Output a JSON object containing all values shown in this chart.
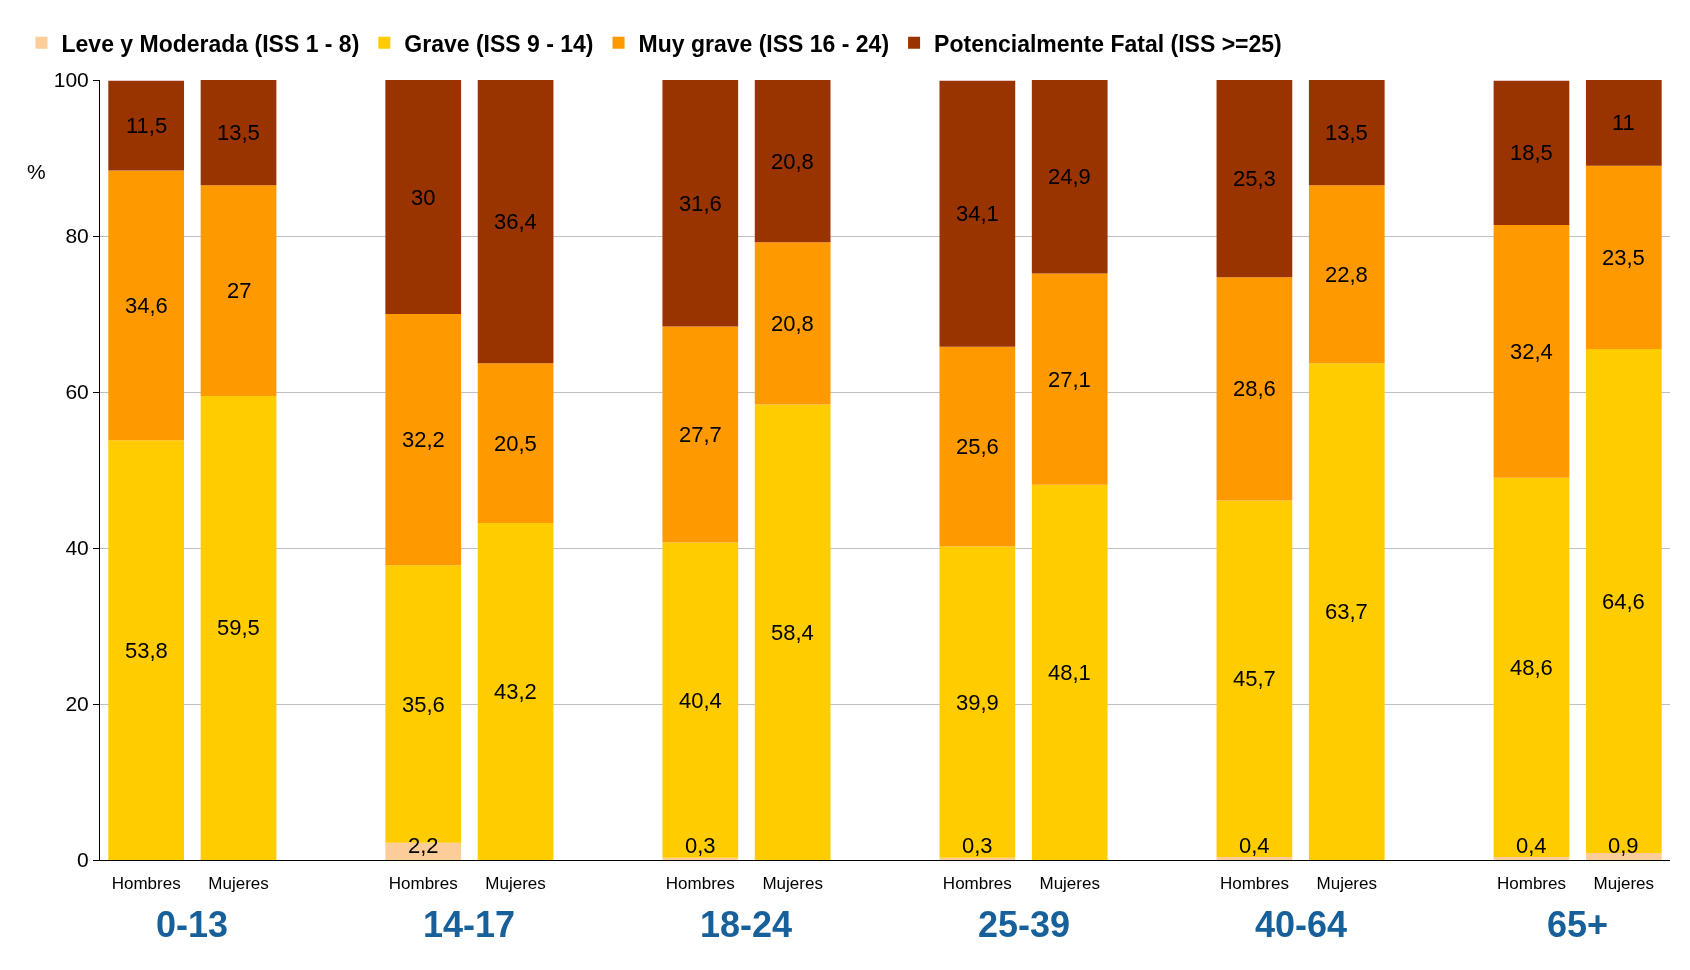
{
  "chart_data": {
    "type": "bar",
    "stacked": true,
    "ylabel": "%",
    "ylim": [
      0,
      100
    ],
    "yticks": [
      0,
      20,
      40,
      60,
      80,
      100
    ],
    "grid": "y",
    "legend": "top",
    "data_labels": true,
    "categories": [
      "Hombres",
      "Mujeres",
      null,
      "Hombres",
      "Mujeres",
      null,
      "Hombres",
      "Mujeres",
      null,
      "Hombres",
      "Mujeres",
      null,
      "Hombres",
      "Mujeres",
      null,
      "Hombres",
      "Mujeres"
    ],
    "annotations": [
      "0-13",
      "14-17",
      "18-24",
      "25-39",
      "40-64",
      "65+"
    ],
    "series": [
      {
        "name": "Leve y Moderada (ISS 1 - 8)",
        "color": "#fccc99",
        "values": [
          null,
          null,
          null,
          2.2,
          null,
          null,
          0.3,
          null,
          null,
          0.3,
          null,
          null,
          0.4,
          null,
          null,
          0.4,
          0.9
        ],
        "value_labels": [
          null,
          null,
          null,
          "2,2",
          null,
          null,
          "0,3",
          null,
          null,
          "0,3",
          null,
          null,
          "0,4",
          null,
          null,
          "0,4",
          "0,9"
        ]
      },
      {
        "name": "Grave (ISS 9 - 14)",
        "color": "#ffcc00",
        "values": [
          53.8,
          59.5,
          null,
          35.6,
          43.2,
          null,
          40.4,
          58.4,
          null,
          39.9,
          48.1,
          null,
          45.7,
          63.7,
          null,
          48.6,
          64.6
        ],
        "value_labels": [
          "53,8",
          "59,5",
          null,
          "35,6",
          "43,2",
          null,
          "40,4",
          "58,4",
          null,
          "39,9",
          "48,1",
          null,
          "45,7",
          "63,7",
          null,
          "48,6",
          "64,6"
        ]
      },
      {
        "name": "Muy grave (ISS 16 - 24)",
        "color": "#ff9900",
        "values": [
          34.6,
          27,
          null,
          32.2,
          20.5,
          null,
          27.7,
          20.8,
          null,
          25.6,
          27.1,
          null,
          28.6,
          22.8,
          null,
          32.4,
          23.5
        ],
        "value_labels": [
          "34,6",
          "27",
          null,
          "32,2",
          "20,5",
          null,
          "27,7",
          "20,8",
          null,
          "25,6",
          "27,1",
          null,
          "28,6",
          "22,8",
          null,
          "32,4",
          "23,5"
        ]
      },
      {
        "name": "Potencialmente Fatal (ISS >=25)",
        "color": "#993300",
        "values": [
          11.5,
          13.5,
          null,
          30,
          36.4,
          null,
          31.6,
          20.8,
          null,
          34.1,
          24.9,
          null,
          25.3,
          13.5,
          null,
          18.5,
          11
        ],
        "value_labels": [
          "11,5",
          "13,5",
          null,
          "30",
          "36,4",
          null,
          "31,6",
          "20,8",
          null,
          "34,1",
          "24,9",
          null,
          "25,3",
          "13,5",
          null,
          "18,5",
          "11"
        ]
      }
    ]
  }
}
